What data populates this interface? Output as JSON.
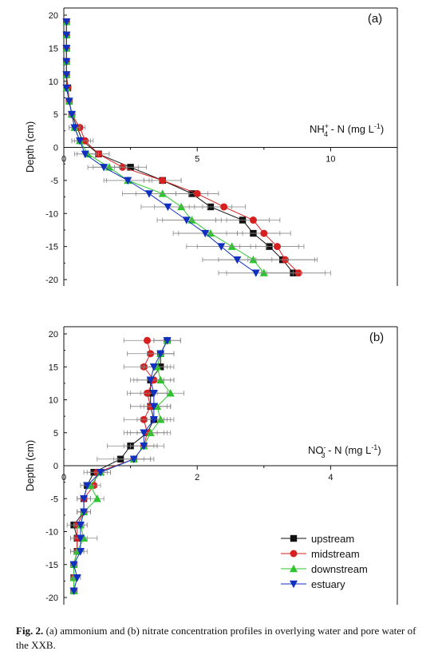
{
  "caption": {
    "label": "Fig. 2.",
    "text": "(a) ammonium and (b) nitrate concentration profiles in overlying water and pore water of the XXB."
  },
  "colors": {
    "upstream": "#111111",
    "midstream": "#d62020",
    "downstream": "#2fc42f",
    "estuary": "#1030c0",
    "errorbar": "#888888"
  },
  "chart_data": [
    {
      "type": "line",
      "panel_label": "(a)",
      "annotation": "NH4+ - N (mg L-1)",
      "ylabel": "Depth (cm)",
      "xlim": [
        0,
        12.5
      ],
      "ylim": [
        -21,
        20
      ],
      "x_ticks": [
        0,
        5,
        10
      ],
      "y_ticks": [
        20,
        15,
        10,
        5,
        0,
        -5,
        -10,
        -15,
        -20
      ],
      "grid": false,
      "series": [
        {
          "name": "upstream",
          "marker": "square",
          "depth": [
            19,
            17,
            15,
            13,
            11,
            9,
            7,
            5,
            3,
            1,
            -1,
            -3,
            -5,
            -7,
            -9,
            -11,
            -13,
            -15,
            -17,
            -19
          ],
          "values": [
            0.1,
            0.1,
            0.1,
            0.1,
            0.1,
            0.15,
            0.2,
            0.3,
            0.5,
            0.7,
            1.3,
            2.5,
            3.7,
            4.8,
            5.5,
            6.7,
            7.1,
            7.7,
            8.2,
            8.6
          ],
          "errors": [
            0.05,
            0.05,
            0.05,
            0.05,
            0.05,
            0.05,
            0.1,
            0.1,
            0.2,
            0.3,
            0.4,
            0.6,
            0.7,
            0.6,
            0.8,
            1.0,
            1.0,
            1.1,
            1.3,
            1.2
          ]
        },
        {
          "name": "midstream",
          "marker": "circle",
          "depth": [
            19,
            17,
            15,
            13,
            11,
            9,
            7,
            5,
            3,
            1,
            -1,
            -3,
            -5,
            -7,
            -9,
            -11,
            -13,
            -15,
            -17,
            -19
          ],
          "values": [
            0.1,
            0.1,
            0.1,
            0.1,
            0.1,
            0.15,
            0.2,
            0.3,
            0.6,
            0.8,
            1.3,
            2.2,
            3.7,
            5.0,
            6.0,
            7.1,
            7.5,
            8.0,
            8.3,
            8.8
          ],
          "errors": [
            0.05,
            0.05,
            0.05,
            0.05,
            0.05,
            0.05,
            0.1,
            0.1,
            0.2,
            0.3,
            0.4,
            0.6,
            0.7,
            0.8,
            0.8,
            1.0,
            1.0,
            1.0,
            1.1,
            1.2
          ]
        },
        {
          "name": "downstream",
          "marker": "triangle-up",
          "depth": [
            19,
            17,
            15,
            13,
            11,
            9,
            7,
            5,
            3,
            1,
            -1,
            -3,
            -5,
            -7,
            -9,
            -11,
            -13,
            -15,
            -17,
            -19
          ],
          "values": [
            0.1,
            0.1,
            0.1,
            0.1,
            0.1,
            0.1,
            0.2,
            0.3,
            0.4,
            0.6,
            0.9,
            1.7,
            2.4,
            3.7,
            4.4,
            4.8,
            5.5,
            6.3,
            7.1,
            7.5
          ],
          "errors": [
            0.05,
            0.05,
            0.05,
            0.05,
            0.05,
            0.05,
            0.1,
            0.1,
            0.2,
            0.3,
            0.4,
            0.6,
            0.9,
            1.0,
            1.0,
            1.1,
            1.2,
            1.3,
            1.3,
            1.4
          ]
        },
        {
          "name": "estuary",
          "marker": "triangle-down",
          "depth": [
            19,
            17,
            15,
            13,
            11,
            9,
            7,
            5,
            3,
            1,
            -1,
            -3,
            -5,
            -7,
            -9,
            -11,
            -13,
            -15,
            -17,
            -19
          ],
          "values": [
            0.1,
            0.1,
            0.1,
            0.1,
            0.1,
            0.1,
            0.2,
            0.3,
            0.4,
            0.6,
            0.8,
            1.5,
            2.4,
            3.2,
            3.9,
            4.6,
            5.3,
            5.9,
            6.5,
            7.2
          ],
          "errors": [
            0.05,
            0.05,
            0.05,
            0.05,
            0.05,
            0.05,
            0.1,
            0.1,
            0.2,
            0.3,
            0.4,
            0.6,
            0.8,
            1.0,
            1.0,
            1.1,
            1.2,
            1.3,
            1.3,
            1.4
          ]
        }
      ]
    },
    {
      "type": "line",
      "panel_label": "(b)",
      "annotation": "NO3- - N (mg L-1)",
      "ylabel": "Depth (cm)",
      "xlim": [
        0,
        5
      ],
      "ylim": [
        -21,
        20
      ],
      "x_ticks": [
        0,
        2,
        4
      ],
      "y_ticks": [
        20,
        15,
        10,
        5,
        0,
        -5,
        -10,
        -15,
        -20
      ],
      "grid": false,
      "legend_position": "bottom-right",
      "series": [
        {
          "name": "upstream",
          "marker": "square",
          "depth": [
            19,
            17,
            15,
            13,
            11,
            9,
            7,
            5,
            3,
            1,
            -1,
            -3,
            -5,
            -7,
            -9,
            -11,
            -13,
            -15,
            -17,
            -19
          ],
          "values": [
            1.55,
            1.45,
            1.45,
            1.3,
            1.3,
            1.3,
            1.35,
            1.25,
            1.0,
            0.85,
            0.45,
            0.35,
            0.3,
            0.3,
            0.15,
            0.2,
            0.2,
            0.15,
            0.15,
            0.15
          ],
          "errors": [
            0.2,
            0.2,
            0.2,
            0.3,
            0.3,
            0.3,
            0.25,
            0.35,
            0.35,
            0.35,
            0.15,
            0.1,
            0.1,
            0.1,
            0.1,
            0.1,
            0.1,
            0.05,
            0.05,
            0.05
          ]
        },
        {
          "name": "midstream",
          "marker": "circle",
          "depth": [
            19,
            17,
            15,
            13,
            11,
            9,
            7,
            5,
            3,
            1,
            -1,
            -3,
            -5,
            -7,
            -9,
            -11,
            -13,
            -15,
            -17,
            -19
          ],
          "values": [
            1.25,
            1.3,
            1.2,
            1.35,
            1.25,
            1.3,
            1.2,
            1.25,
            1.2,
            1.05,
            0.5,
            0.45,
            0.3,
            0.3,
            0.2,
            0.2,
            0.2,
            0.15,
            0.15,
            0.15
          ],
          "errors": [
            0.35,
            0.35,
            0.3,
            0.3,
            0.3,
            0.3,
            0.3,
            0.3,
            0.3,
            0.3,
            0.15,
            0.1,
            0.1,
            0.1,
            0.1,
            0.1,
            0.1,
            0.05,
            0.05,
            0.05
          ]
        },
        {
          "name": "downstream",
          "marker": "triangle-up",
          "depth": [
            19,
            17,
            15,
            13,
            11,
            9,
            7,
            5,
            3,
            1,
            -1,
            -3,
            -5,
            -7,
            -9,
            -11,
            -13,
            -15,
            -17,
            -19
          ],
          "values": [
            1.55,
            1.45,
            1.4,
            1.45,
            1.6,
            1.4,
            1.45,
            1.3,
            1.2,
            1.05,
            0.55,
            0.4,
            0.5,
            0.3,
            0.25,
            0.3,
            0.2,
            0.15,
            0.15,
            0.15
          ],
          "errors": [
            0.2,
            0.2,
            0.2,
            0.2,
            0.2,
            0.2,
            0.2,
            0.2,
            0.2,
            0.25,
            0.15,
            0.1,
            0.1,
            0.1,
            0.1,
            0.2,
            0.1,
            0.05,
            0.05,
            0.05
          ]
        },
        {
          "name": "estuary",
          "marker": "triangle-down",
          "depth": [
            19,
            17,
            15,
            13,
            11,
            9,
            7,
            5,
            3,
            1,
            -1,
            -3,
            -5,
            -7,
            -9,
            -11,
            -13,
            -15,
            -17,
            -19
          ],
          "values": [
            1.55,
            1.45,
            1.35,
            1.3,
            1.35,
            1.35,
            1.35,
            1.2,
            1.2,
            1.05,
            0.55,
            0.35,
            0.3,
            0.3,
            0.25,
            0.25,
            0.25,
            0.15,
            0.2,
            0.15
          ],
          "errors": [
            0.2,
            0.2,
            0.2,
            0.2,
            0.2,
            0.2,
            0.2,
            0.2,
            0.2,
            0.25,
            0.15,
            0.1,
            0.1,
            0.1,
            0.1,
            0.1,
            0.1,
            0.05,
            0.05,
            0.05
          ]
        }
      ]
    }
  ]
}
